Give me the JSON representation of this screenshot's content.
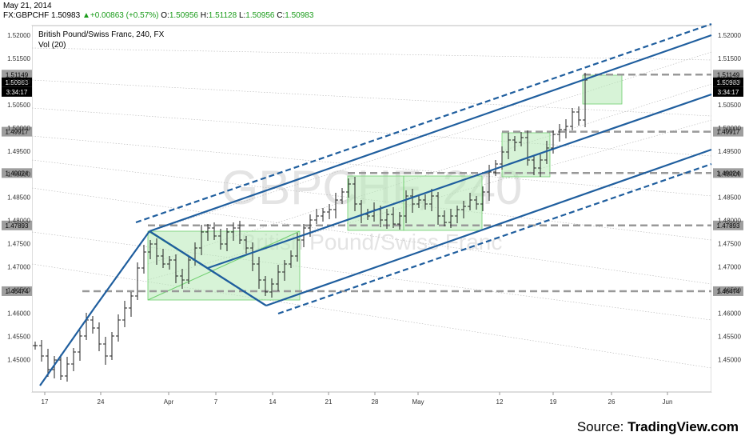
{
  "header": {
    "date": "May 21, 2014",
    "symbol": "FX:GBPCHF",
    "last": "1.50983",
    "change_arrow": "▲",
    "change": "+0.00863 (+0.57%)",
    "o_label": "O:",
    "o": "1.50956",
    "h_label": "H:",
    "h": "1.51128",
    "l_label": "L:",
    "l": "1.50956",
    "c_label": "C:",
    "c": "1.50983"
  },
  "legend": {
    "title": "British Pound/Swiss Franc, 240, FX",
    "vol": "Vol (20)"
  },
  "watermark": {
    "big": "GBPCHF, 240",
    "small": "British Pound/Swiss Franc"
  },
  "source": {
    "prefix": "Source: ",
    "name": "TradingView.com"
  },
  "chart_data": {
    "type": "candlestick",
    "title": "British Pound/Swiss Franc, 240, FX",
    "x_tick_labels": [
      "17",
      "24",
      "Apr",
      "7",
      "14",
      "21",
      "28",
      "May",
      "12",
      "19",
      "26",
      "Jun"
    ],
    "y_tick_labels": [
      "1.52000",
      "1.51500",
      "1.51000",
      "1.50500",
      "1.50000",
      "1.49500",
      "1.49000",
      "1.48500",
      "1.48000",
      "1.47500",
      "1.47000",
      "1.46500",
      "1.46000",
      "1.45500",
      "1.45000"
    ],
    "ylim": [
      1.444,
      1.523
    ],
    "horizontal_levels": [
      {
        "value": 1.51149,
        "label": "1.51149"
      },
      {
        "value": 1.49917,
        "label": "1.49917"
      },
      {
        "value": 1.49024,
        "label": "1.49024"
      },
      {
        "value": 1.47893,
        "label": "1.47893"
      },
      {
        "value": 1.46474,
        "label": "1.46474"
      }
    ],
    "last_price": {
      "value": 1.50983,
      "label": "1.50983",
      "countdown": "3:34:17"
    },
    "colors": {
      "trendline": "#1f5e9e",
      "level": "#999999",
      "zone": "#b7eab7",
      "zone_border": "#6fcf6f",
      "candles": "#222222"
    }
  }
}
